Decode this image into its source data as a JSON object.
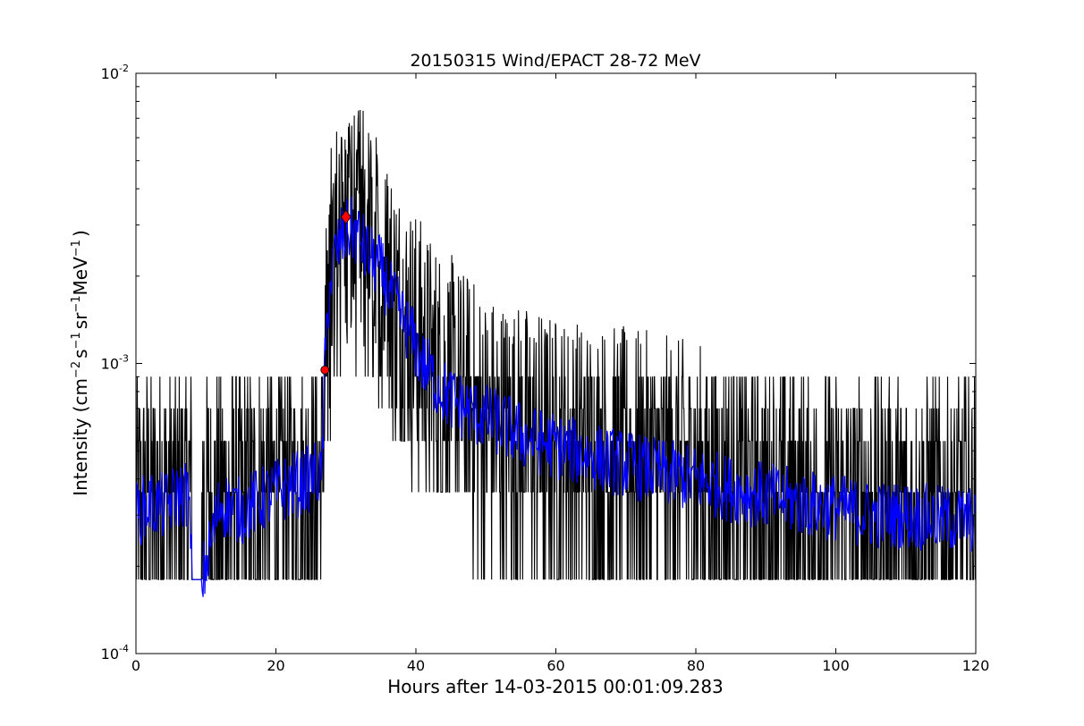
{
  "chart_data": {
    "type": "line",
    "title": "20150315 Wind/EPACT 28-72 MeV",
    "xlabel": "Hours after 14-03-2015 00:01:09.283",
    "ylabel_parts": {
      "main": "Intensity (cm",
      "exp1": "−2",
      "s": "s",
      "exp2": "−1",
      "sr": "sr",
      "exp3": "−1",
      "mev": "MeV",
      "exp4": "−1",
      "close": ")"
    },
    "xlim": [
      0,
      120
    ],
    "ylim": [
      0.0001,
      0.01
    ],
    "yscale": "log",
    "grid": false,
    "x_ticks": [
      "0",
      "20",
      "40",
      "60",
      "80",
      "100",
      "120"
    ],
    "y_ticks": [
      {
        "base": "10",
        "exp": "-4"
      },
      {
        "base": "10",
        "exp": "-3"
      },
      {
        "base": "10",
        "exp": "-2"
      }
    ],
    "series": [
      {
        "role": "raw",
        "color": "#000000",
        "description_levels": [
          0.00018,
          0.00036,
          0.00054,
          0.0007,
          0.0009
        ],
        "envelope": {
          "hours": [
            0,
            8,
            10,
            26.5,
            27,
            28,
            30,
            32,
            35,
            38,
            42,
            50,
            60,
            70,
            80,
            90,
            100,
            110,
            120
          ],
          "median": [
            0.00032,
            0.00032,
            0.00032,
            0.00035,
            0.0009,
            0.0022,
            0.0028,
            0.0027,
            0.002,
            0.0014,
            0.00095,
            0.0006,
            0.0005,
            0.00045,
            0.0004,
            0.00033,
            0.00031,
            0.0003,
            0.0003
          ]
        }
      },
      {
        "role": "smoothed",
        "color": "#0000ff",
        "points": {
          "hours": [
            0,
            2,
            4,
            6,
            7.5,
            8,
            8.5,
            9.5,
            12,
            15,
            18,
            21,
            24,
            26,
            26.5,
            27,
            27.5,
            28.5,
            29.5,
            30.5,
            31.5,
            33,
            35,
            37,
            39,
            41,
            43,
            45,
            48,
            52,
            56,
            60,
            65,
            70,
            75,
            80,
            85,
            90,
            95,
            100,
            105,
            110,
            115,
            120
          ],
          "values": [
            0.0003,
            0.00033,
            0.00032,
            0.00035,
            0.00036,
            0.00018,
            0.00018,
            0.00018,
            0.00033,
            0.00031,
            0.00034,
            0.00037,
            0.00039,
            0.00042,
            0.00038,
            0.00095,
            0.0017,
            0.0024,
            0.0027,
            0.0029,
            0.0028,
            0.0024,
            0.0021,
            0.0016,
            0.0013,
            0.001,
            0.00085,
            0.00075,
            0.00068,
            0.00062,
            0.00055,
            0.00052,
            0.00048,
            0.00045,
            0.00042,
            0.0004,
            0.00037,
            0.00035,
            0.00033,
            0.00032,
            0.0003,
            0.0003,
            0.00029,
            0.00029
          ]
        }
      }
    ],
    "markers": [
      {
        "shape": "circle",
        "color": "#ff0000",
        "x": 27.0,
        "y": 0.00095
      },
      {
        "shape": "diamond",
        "color": "#ff0000",
        "x": 30.0,
        "y": 0.0032
      }
    ]
  }
}
